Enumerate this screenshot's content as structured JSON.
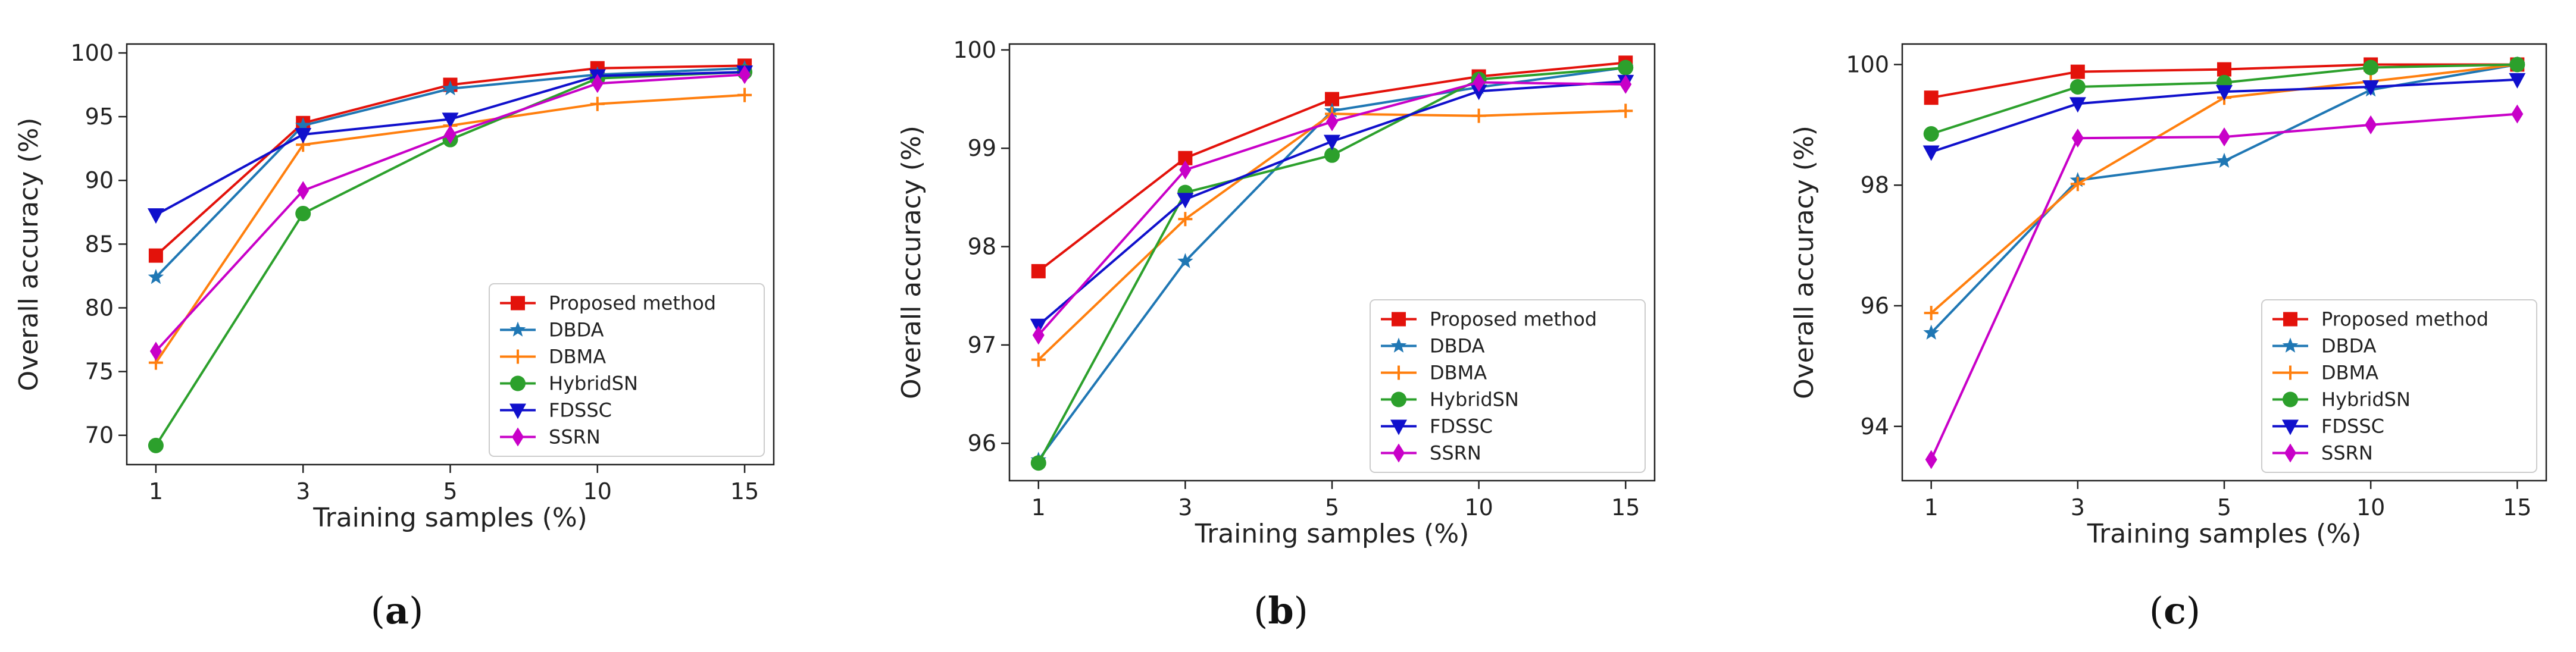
{
  "chart_data": [
    {
      "type": "line",
      "panel": "(a)",
      "panel_letter": "a",
      "xlabel": "Training samples (%)",
      "ylabel": "Overall accuracy (%)",
      "categories": [
        "1",
        "3",
        "5",
        "10",
        "15"
      ],
      "ylim": [
        67.7,
        100.7
      ],
      "yticks": [
        70,
        75,
        80,
        85,
        90,
        95,
        100
      ],
      "ytick_labels": [
        "70",
        "75",
        "80",
        "85",
        "90",
        "95",
        "100"
      ],
      "legend_position": "lower right",
      "series": [
        {
          "name": "Proposed method",
          "color": "#e3120b",
          "marker": "square",
          "values": [
            84.1,
            94.5,
            97.5,
            98.8,
            99.0
          ]
        },
        {
          "name": "DBDA",
          "color": "#1f77b4",
          "marker": "star",
          "values": [
            82.4,
            94.3,
            97.2,
            98.3,
            98.8
          ]
        },
        {
          "name": "DBMA",
          "color": "#ff7f0e",
          "marker": "plus",
          "values": [
            75.7,
            92.8,
            94.3,
            96.0,
            96.7
          ]
        },
        {
          "name": "HybridSN",
          "color": "#2ca02c",
          "marker": "circle",
          "values": [
            69.2,
            87.4,
            93.2,
            98.0,
            98.5
          ]
        },
        {
          "name": "FDSSC",
          "color": "#1010cc",
          "marker": "triangle-down",
          "values": [
            87.3,
            93.6,
            94.8,
            98.2,
            98.5
          ]
        },
        {
          "name": "SSRN",
          "color": "#c800c8",
          "marker": "diamond",
          "values": [
            76.6,
            89.2,
            93.6,
            97.6,
            98.3
          ]
        }
      ]
    },
    {
      "type": "line",
      "panel": "(b)",
      "panel_letter": "b",
      "xlabel": "Training samples (%)",
      "ylabel": "Overall accuracy (%)",
      "categories": [
        "1",
        "3",
        "5",
        "10",
        "15"
      ],
      "ylim": [
        95.62,
        100.06
      ],
      "yticks": [
        96,
        97,
        98,
        99,
        100
      ],
      "ytick_labels": [
        "96",
        "97",
        "98",
        "99",
        "100"
      ],
      "legend_position": "lower right",
      "series": [
        {
          "name": "Proposed method",
          "color": "#e3120b",
          "marker": "square",
          "values": [
            97.75,
            98.9,
            99.5,
            99.73,
            99.87
          ]
        },
        {
          "name": "DBDA",
          "color": "#1f77b4",
          "marker": "star",
          "values": [
            95.83,
            97.85,
            99.38,
            99.62,
            99.82
          ]
        },
        {
          "name": "DBMA",
          "color": "#ff7f0e",
          "marker": "plus",
          "values": [
            96.85,
            98.28,
            99.35,
            99.33,
            99.38
          ]
        },
        {
          "name": "HybridSN",
          "color": "#2ca02c",
          "marker": "circle",
          "values": [
            95.8,
            98.55,
            98.93,
            99.7,
            99.82
          ]
        },
        {
          "name": "FDSSC",
          "color": "#1010cc",
          "marker": "triangle-down",
          "values": [
            97.2,
            98.48,
            99.07,
            99.58,
            99.68
          ]
        },
        {
          "name": "SSRN",
          "color": "#c800c8",
          "marker": "diamond",
          "values": [
            97.1,
            98.78,
            99.27,
            99.67,
            99.65
          ]
        }
      ]
    },
    {
      "type": "line",
      "panel": "(c)",
      "panel_letter": "c",
      "xlabel": "Training samples (%)",
      "ylabel": "Overall accuracy (%)",
      "categories": [
        "1",
        "3",
        "5",
        "10",
        "15"
      ],
      "ylim": [
        93.1,
        100.34
      ],
      "yticks": [
        94,
        96,
        98,
        100
      ],
      "ytick_labels": [
        "94",
        "96",
        "98",
        "100"
      ],
      "legend_position": "lower right",
      "series": [
        {
          "name": "Proposed method",
          "color": "#e3120b",
          "marker": "square",
          "values": [
            99.45,
            99.88,
            99.92,
            100.0,
            100.0
          ]
        },
        {
          "name": "DBDA",
          "color": "#1f77b4",
          "marker": "star",
          "values": [
            95.55,
            98.08,
            98.4,
            99.58,
            100.0
          ]
        },
        {
          "name": "DBMA",
          "color": "#ff7f0e",
          "marker": "plus",
          "values": [
            95.88,
            98.02,
            99.45,
            99.72,
            100.0
          ]
        },
        {
          "name": "HybridSN",
          "color": "#2ca02c",
          "marker": "circle",
          "values": [
            98.85,
            99.63,
            99.7,
            99.95,
            100.0
          ]
        },
        {
          "name": "FDSSC",
          "color": "#1010cc",
          "marker": "triangle-down",
          "values": [
            98.55,
            99.35,
            99.55,
            99.63,
            99.75
          ]
        },
        {
          "name": "SSRN",
          "color": "#c800c8",
          "marker": "diamond",
          "values": [
            93.45,
            98.78,
            98.8,
            99.0,
            99.18
          ]
        }
      ]
    }
  ]
}
